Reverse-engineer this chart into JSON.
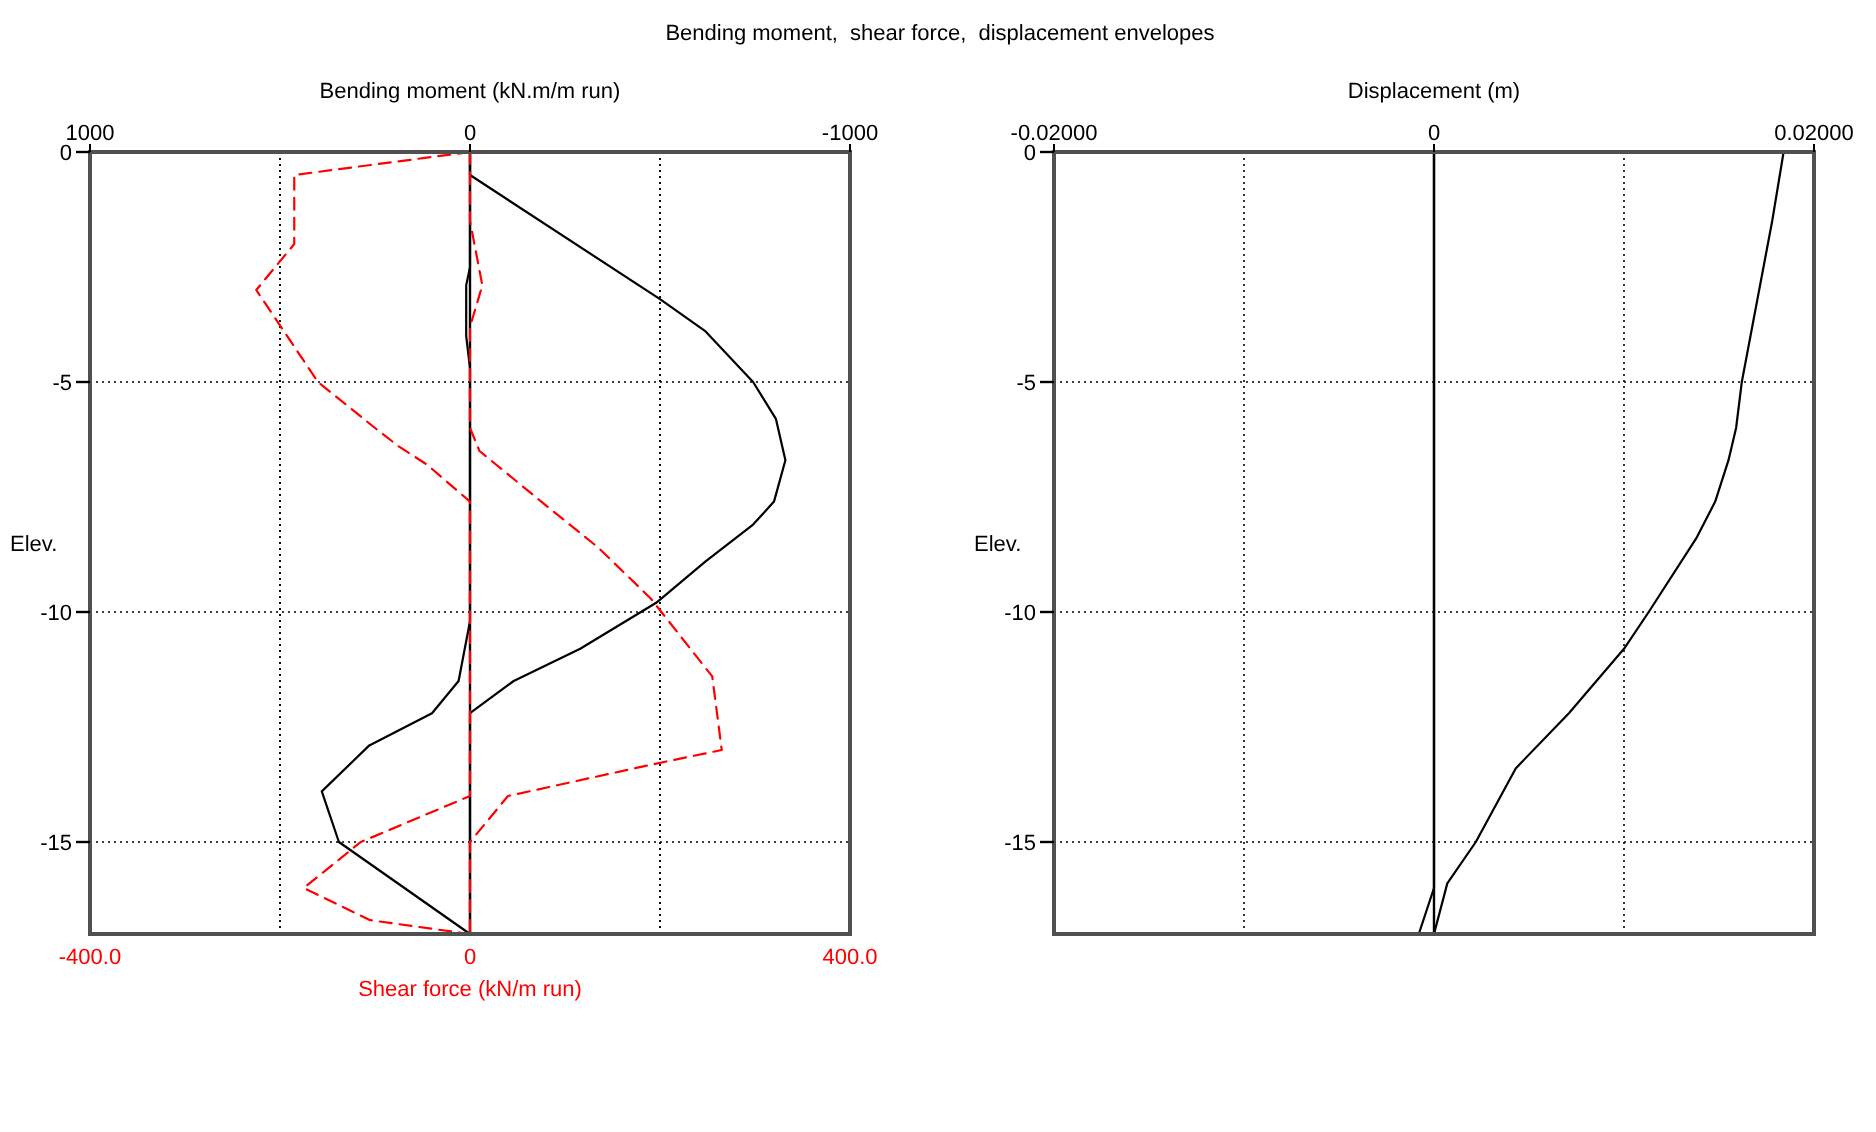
{
  "chart_data": [
    {
      "type": "line",
      "title": "Bending moment,  shear force,  displacement envelopes",
      "x2label": "Bending moment (kN.m/m run)",
      "xlabel": "Shear force (kN/m run)",
      "ylabel": "Elev.",
      "xlim": [
        -400,
        400
      ],
      "xticks": [
        {
          "value": -400,
          "label": "-400.0"
        },
        {
          "value": -200,
          "label": null
        },
        0,
        {
          "value": 200,
          "label": null
        },
        {
          "value": 400,
          "label": "400.0"
        }
      ],
      "x2lim": [
        1000,
        -1000
      ],
      "x2ticks": [
        1000,
        {
          "value": 500,
          "label": null
        },
        0,
        {
          "value": -500,
          "label": null
        },
        -1000
      ],
      "ylim": [
        -17,
        0
      ],
      "yticks": [
        0,
        -5,
        -10,
        -15
      ],
      "grid": true,
      "line_style": "solid",
      "ref_lines": [
        {
          "axis": "x",
          "value": 0,
          "color": "#000000"
        }
      ],
      "series": [
        {
          "color": "#000000",
          "axis": "x2",
          "x": [
            0,
            0,
            -500,
            -620,
            -745,
            -805,
            -830,
            -800,
            -745,
            -620,
            -490,
            -290,
            -115,
            0,
            0
          ],
          "values": [
            0,
            -0.5,
            -3.2,
            -3.9,
            -5.0,
            -5.8,
            -6.7,
            -7.6,
            -8.1,
            -8.9,
            -9.8,
            -10.8,
            -11.5,
            -12.2,
            -17
          ]
        },
        {
          "color": "#000000",
          "axis": "x2",
          "x": [
            0,
            0,
            10,
            10,
            0,
            0,
            30,
            100,
            265,
            390,
            345,
            0
          ],
          "values": [
            0,
            -2.5,
            -2.9,
            -4.0,
            -4.7,
            -10.2,
            -11.5,
            -12.2,
            -12.9,
            -13.9,
            -15.0,
            -17
          ]
        },
        {
          "color": "#ff0000",
          "line_style": "dashed",
          "x": [
            0,
            -185,
            -185,
            -225,
            -160,
            -100,
            -75,
            -45,
            0,
            0,
            -115,
            -175,
            -105,
            0
          ],
          "values": [
            0,
            -0.5,
            -2.0,
            -3.0,
            -5.0,
            -6.0,
            -6.4,
            -6.8,
            -7.6,
            -14.0,
            -15.0,
            -16.0,
            -16.7,
            -17
          ]
        },
        {
          "color": "#ff0000",
          "line_style": "dashed",
          "x": [
            0,
            0,
            13,
            0,
            0,
            10,
            75,
            135,
            190,
            255,
            265,
            195,
            40,
            0,
            0
          ],
          "values": [
            0,
            -1.5,
            -2.9,
            -3.8,
            -6.0,
            -6.5,
            -7.6,
            -8.6,
            -9.7,
            -11.4,
            -13.0,
            -13.3,
            -14.0,
            -15.0,
            -17
          ]
        }
      ]
    },
    {
      "type": "line",
      "xlabel": "Displacement (m)",
      "ylabel": "Elev.",
      "xlim": [
        -0.02,
        0.02
      ],
      "xticks": [
        {
          "value": -0.02,
          "label": "-0.02000"
        },
        {
          "value": -0.01,
          "label": null
        },
        0,
        {
          "value": 0.01,
          "label": null
        },
        {
          "value": 0.02,
          "label": "0.02000"
        }
      ],
      "ylim": [
        -17,
        0
      ],
      "yticks": [
        0,
        -5,
        -10,
        -15
      ],
      "grid": true,
      "line_style": "solid",
      "ref_lines": [
        {
          "axis": "x",
          "value": 0,
          "color": "#000000"
        }
      ],
      "series": [
        {
          "color": "#000000",
          "x": [
            0.0184,
            0.0178,
            0.0162,
            0.0159,
            0.0155,
            0.0148,
            0.0138,
            0.0113,
            0.01,
            0.0071,
            0.0043,
            0.0022,
            0.0007,
            0.0
          ],
          "values": [
            0,
            -1.5,
            -5.0,
            -6.0,
            -6.7,
            -7.6,
            -8.4,
            -10.0,
            -10.8,
            -12.2,
            -13.4,
            -15.0,
            -15.9,
            -17
          ]
        },
        {
          "color": "#000000",
          "x": [
            0,
            0,
            -0.0008
          ],
          "values": [
            0,
            -16.0,
            -17
          ]
        }
      ]
    }
  ]
}
